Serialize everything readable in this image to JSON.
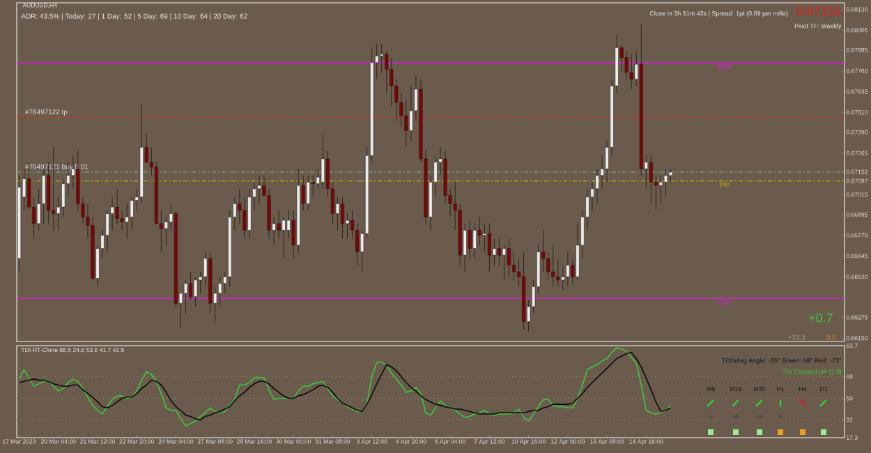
{
  "chart_data": [
    {
      "type": "candlestick",
      "title": "AUDUSD,H4",
      "categories": [
        null,
        null,
        null,
        null,
        null,
        null,
        null,
        null,
        null,
        null,
        null,
        null,
        null,
        null,
        null,
        null,
        null,
        null,
        null,
        null,
        null,
        null,
        null,
        null,
        null,
        null,
        null,
        null,
        null,
        null,
        null,
        null,
        null,
        null,
        null,
        null,
        null,
        null,
        null,
        null,
        null,
        null,
        null,
        null,
        null,
        null,
        null,
        null,
        null,
        null,
        null,
        null,
        null,
        null,
        null,
        null,
        null,
        null,
        null,
        null,
        null,
        null,
        null,
        null,
        null,
        null,
        null,
        null,
        null,
        null,
        null,
        null,
        null,
        null,
        null,
        null,
        null,
        null,
        null,
        null,
        null,
        null,
        null,
        null,
        null,
        null,
        null,
        null,
        null,
        null,
        null,
        null,
        null,
        null,
        null,
        null,
        null,
        null,
        null,
        null,
        null,
        null,
        null,
        null,
        null,
        null,
        null,
        null,
        null,
        null,
        null,
        null,
        null,
        null,
        null,
        null,
        null,
        null,
        null,
        null,
        null,
        null,
        null,
        null,
        null,
        null,
        null,
        null,
        null,
        null,
        null,
        null,
        null,
        null,
        null,
        null,
        null,
        null,
        null,
        null,
        null,
        null,
        null,
        null,
        null,
        null,
        null,
        null,
        null,
        null,
        null,
        null,
        null,
        null,
        null,
        null,
        null,
        null,
        null,
        null,
        null,
        null,
        null,
        null,
        null,
        null,
        null,
        null,
        null
      ],
      "ohlc": [
        [
          0.6663,
          0.6713,
          0.6655,
          0.6706
        ],
        [
          0.67,
          0.6717,
          0.6692,
          0.6711
        ],
        [
          0.6711,
          0.6721,
          0.6692,
          0.6694
        ],
        [
          0.6694,
          0.67,
          0.6675,
          0.6684
        ],
        [
          0.6684,
          0.6705,
          0.668,
          0.6696
        ],
        [
          0.6696,
          0.6717,
          0.6684,
          0.6713
        ],
        [
          0.6713,
          0.6721,
          0.6684,
          0.6692
        ],
        [
          0.6692,
          0.673,
          0.668,
          0.669
        ],
        [
          0.669,
          0.67,
          0.668,
          0.6694
        ],
        [
          0.6694,
          0.6711,
          0.6688,
          0.6708
        ],
        [
          0.6708,
          0.6721,
          0.67,
          0.6713
        ],
        [
          0.6713,
          0.6725,
          0.6705,
          0.6717
        ],
        [
          0.6717,
          0.6728,
          0.6692,
          0.6696
        ],
        [
          0.6696,
          0.67,
          0.6684,
          0.6688
        ],
        [
          0.6688,
          0.6696,
          0.6675,
          0.6683
        ],
        [
          0.6683,
          0.6688,
          0.665,
          0.6651
        ],
        [
          0.6651,
          0.6671,
          0.6646,
          0.6669
        ],
        [
          0.6669,
          0.668,
          0.6663,
          0.6677
        ],
        [
          0.6677,
          0.6692,
          0.6667,
          0.669
        ],
        [
          0.669,
          0.67,
          0.668,
          0.6694
        ],
        [
          0.6694,
          0.6705,
          0.6684,
          0.6687
        ],
        [
          0.6687,
          0.6692,
          0.668,
          0.6685
        ],
        [
          0.6685,
          0.6696,
          0.6675,
          0.6688
        ],
        [
          0.6688,
          0.67,
          0.668,
          0.6698
        ],
        [
          0.6698,
          0.6705,
          0.6692,
          0.67
        ],
        [
          0.67,
          0.6756,
          0.6696,
          0.673
        ],
        [
          0.673,
          0.6738,
          0.6721,
          0.6721
        ],
        [
          0.6721,
          0.673,
          0.6713,
          0.6718
        ],
        [
          0.6718,
          0.6721,
          0.6684,
          0.6684
        ],
        [
          0.6684,
          0.6692,
          0.6667,
          0.6681
        ],
        [
          0.6681,
          0.6688,
          0.6671,
          0.6685
        ],
        [
          0.6685,
          0.6696,
          0.668,
          0.669
        ],
        [
          0.669,
          0.6692,
          0.6634,
          0.6636
        ],
        [
          0.6636,
          0.6642,
          0.6621,
          0.6642
        ],
        [
          0.6642,
          0.665,
          0.663,
          0.6648
        ],
        [
          0.6648,
          0.6655,
          0.6638,
          0.664
        ],
        [
          0.664,
          0.6652,
          0.6634,
          0.665
        ],
        [
          0.665,
          0.6655,
          0.6642,
          0.6652
        ],
        [
          0.6652,
          0.6667,
          0.6646,
          0.6663
        ],
        [
          0.6663,
          0.6667,
          0.663,
          0.6636
        ],
        [
          0.6636,
          0.6646,
          0.6625,
          0.6642
        ],
        [
          0.6642,
          0.6652,
          0.6634,
          0.6648
        ],
        [
          0.6648,
          0.6655,
          0.6642,
          0.6652
        ],
        [
          0.6652,
          0.6692,
          0.6646,
          0.6688
        ],
        [
          0.6688,
          0.67,
          0.668,
          0.6696
        ],
        [
          0.6696,
          0.6705,
          0.6684,
          0.6692
        ],
        [
          0.6692,
          0.67,
          0.6675,
          0.668
        ],
        [
          0.668,
          0.6705,
          0.6675,
          0.67
        ],
        [
          0.67,
          0.6709,
          0.6692,
          0.6705
        ],
        [
          0.6705,
          0.6713,
          0.6696,
          0.6707
        ],
        [
          0.6707,
          0.6713,
          0.67,
          0.6701
        ],
        [
          0.6701,
          0.6705,
          0.6675,
          0.668
        ],
        [
          0.668,
          0.6688,
          0.6671,
          0.6684
        ],
        [
          0.6684,
          0.6692,
          0.6675,
          0.668
        ],
        [
          0.668,
          0.6688,
          0.6663,
          0.6686
        ],
        [
          0.668,
          0.6692,
          0.6675,
          0.6686
        ],
        [
          0.6686,
          0.6692,
          0.6663,
          0.6671
        ],
        [
          0.6671,
          0.6717,
          0.6667,
          0.6707
        ],
        [
          0.6707,
          0.6713,
          0.6692,
          0.6696
        ],
        [
          0.6696,
          0.6713,
          0.6692,
          0.6709
        ],
        [
          0.6709,
          0.6713,
          0.67,
          0.6708
        ],
        [
          0.6708,
          0.6717,
          0.6705,
          0.6712
        ],
        [
          0.6709,
          0.6738,
          0.6705,
          0.6723
        ],
        [
          0.6723,
          0.6728,
          0.67,
          0.6705
        ],
        [
          0.6705,
          0.6709,
          0.6684,
          0.669
        ],
        [
          0.669,
          0.67,
          0.668,
          0.6696
        ],
        [
          0.6696,
          0.67,
          0.6675,
          0.6684
        ],
        [
          0.6684,
          0.669,
          0.6675,
          0.6686
        ],
        [
          0.6686,
          0.6692,
          0.6675,
          0.668
        ],
        [
          0.668,
          0.6684,
          0.6659,
          0.6667
        ],
        [
          0.6667,
          0.668,
          0.6655,
          0.6678
        ],
        [
          0.6678,
          0.673,
          0.6675,
          0.6725
        ],
        [
          0.6725,
          0.679,
          0.6721,
          0.6781
        ],
        [
          0.6781,
          0.6792,
          0.6771,
          0.6785
        ],
        [
          0.6785,
          0.6792,
          0.6775,
          0.6786
        ],
        [
          0.6786,
          0.6788,
          0.6763,
          0.6777
        ],
        [
          0.6777,
          0.6784,
          0.6755,
          0.6767
        ],
        [
          0.6767,
          0.6771,
          0.6746,
          0.6757
        ],
        [
          0.6757,
          0.6763,
          0.6742,
          0.6749
        ],
        [
          0.6749,
          0.6759,
          0.673,
          0.674
        ],
        [
          0.674,
          0.6767,
          0.6734,
          0.6752
        ],
        [
          0.6752,
          0.6773,
          0.6746,
          0.6765
        ],
        [
          0.6765,
          0.6771,
          0.6721,
          0.6723
        ],
        [
          0.6723,
          0.6728,
          0.6684,
          0.6688
        ],
        [
          0.6688,
          0.6713,
          0.668,
          0.6709
        ],
        [
          0.6709,
          0.6725,
          0.67,
          0.6721
        ],
        [
          0.6721,
          0.673,
          0.6713,
          0.6723
        ],
        [
          0.6723,
          0.6728,
          0.6696,
          0.6701
        ],
        [
          0.6701,
          0.6705,
          0.6688,
          0.6696
        ],
        [
          0.6696,
          0.6709,
          0.668,
          0.6692
        ],
        [
          0.6692,
          0.6696,
          0.6659,
          0.6665
        ],
        [
          0.6665,
          0.6684,
          0.6655,
          0.668
        ],
        [
          0.668,
          0.6686,
          0.6663,
          0.6669
        ],
        [
          0.6669,
          0.6684,
          0.6663,
          0.668
        ],
        [
          0.668,
          0.6688,
          0.6671,
          0.6677
        ],
        [
          0.6677,
          0.6684,
          0.6667,
          0.6678
        ],
        [
          0.6678,
          0.6684,
          0.6655,
          0.6665
        ],
        [
          0.6665,
          0.6675,
          0.6659,
          0.6669
        ],
        [
          0.6669,
          0.6675,
          0.6659,
          0.6665
        ],
        [
          0.6665,
          0.6671,
          0.665,
          0.6669
        ],
        [
          0.6669,
          0.6675,
          0.6652,
          0.6659
        ],
        [
          0.6659,
          0.6667,
          0.665,
          0.6655
        ],
        [
          0.6655,
          0.6663,
          0.6646,
          0.6652
        ],
        [
          0.6652,
          0.6667,
          0.662,
          0.6625
        ],
        [
          0.6625,
          0.6638,
          0.6619,
          0.6634
        ],
        [
          0.6634,
          0.665,
          0.663,
          0.6646
        ],
        [
          0.6646,
          0.6671,
          0.6642,
          0.6667
        ],
        [
          0.6667,
          0.668,
          0.6655,
          0.6663
        ],
        [
          0.6663,
          0.6667,
          0.665,
          0.6655
        ],
        [
          0.6655,
          0.6671,
          0.6646,
          0.6652
        ],
        [
          0.6652,
          0.6663,
          0.6646,
          0.665
        ],
        [
          0.665,
          0.6659,
          0.6644,
          0.6652
        ],
        [
          0.6652,
          0.6667,
          0.6646,
          0.6659
        ],
        [
          0.6659,
          0.6663,
          0.6648,
          0.6652
        ],
        [
          0.6652,
          0.6684,
          0.665,
          0.6671
        ],
        [
          0.6671,
          0.6692,
          0.6663,
          0.6688
        ],
        [
          0.6688,
          0.6705,
          0.668,
          0.67
        ],
        [
          0.67,
          0.6709,
          0.6692,
          0.6705
        ],
        [
          0.6705,
          0.6717,
          0.6696,
          0.6713
        ],
        [
          0.6713,
          0.6725,
          0.6705,
          0.6717
        ],
        [
          0.6717,
          0.6734,
          0.6709,
          0.673
        ],
        [
          0.673,
          0.6771,
          0.6725,
          0.6767
        ],
        [
          0.6767,
          0.6798,
          0.6763,
          0.679
        ],
        [
          0.679,
          0.6792,
          0.6775,
          0.6784
        ],
        [
          0.6784,
          0.6788,
          0.6771,
          0.6775
        ],
        [
          0.6775,
          0.6786,
          0.6765,
          0.6771
        ],
        [
          0.6771,
          0.6788,
          0.6767,
          0.678
        ],
        [
          0.678,
          0.6804,
          0.6713,
          0.6717
        ],
        [
          0.6717,
          0.6725,
          0.6705,
          0.6721
        ],
        [
          0.6721,
          0.6725,
          0.6696,
          0.6709
        ],
        [
          0.6709,
          0.6713,
          0.6692,
          0.6707
        ],
        [
          0.6707,
          0.6713,
          0.6696,
          0.6709
        ],
        [
          0.6709,
          0.6717,
          0.67,
          0.6713
        ],
        [
          0.6713,
          0.6717,
          0.6709,
          0.6715
        ],
        null,
        null,
        null,
        null,
        null,
        null,
        null,
        null,
        null,
        null,
        null,
        null,
        null,
        null,
        null,
        null,
        null,
        null,
        null,
        null,
        null,
        null,
        null,
        null,
        null,
        null,
        null,
        null,
        null,
        null,
        null,
        null,
        null,
        null,
        null
      ],
      "ylim": [
        0.6613,
        0.6817
      ],
      "yticks": [
        {
          "value": 0.6813,
          "label": "0.68130"
        },
        {
          "value": 0.68005,
          "label": "0.68005"
        },
        {
          "value": 0.67885,
          "label": "0.67885"
        },
        {
          "value": 0.6776,
          "label": "0.67760"
        },
        {
          "value": 0.67635,
          "label": "0.67635"
        },
        {
          "value": 0.6751,
          "label": "0.67510"
        },
        {
          "value": 0.6739,
          "label": "0.67390"
        },
        {
          "value": 0.67265,
          "label": "0.67265"
        },
        0.67152,
        0.67097,
        {
          "value": 0.67015,
          "label": "0.67015"
        },
        {
          "value": 0.66895,
          "label": "0.66895"
        },
        {
          "value": 0.6677,
          "label": "0.66770"
        },
        {
          "value": 0.66645,
          "label": "0.66645"
        },
        {
          "value": 0.6652,
          "label": "0.66520"
        },
        {
          "value": 0.66275,
          "label": "0.66275"
        },
        {
          "value": 0.6615,
          "label": "0.66150"
        }
      ],
      "tick_labels": "y",
      "ref_lines": [
        {
          "axis": "y",
          "value": 0.6781,
          "label": "R38",
          "color": "#d81ed8",
          "line_style": "solid"
        },
        {
          "axis": "y",
          "value": 0.6639,
          "label": "S38",
          "color": "#d81ed8",
          "line_style": "solid"
        },
        {
          "axis": "y",
          "value": 0.67097,
          "label": "PP",
          "color": "#c8b400",
          "line_style": "dashed"
        },
        {
          "axis": "y",
          "value": 0.6748,
          "label": "#76497122 tp",
          "color": "#c03a2a",
          "line_style": "dashed"
        },
        {
          "axis": "y",
          "value": 0.6715,
          "label": "#76497121 buy 0.01",
          "color": "#6f9a7c",
          "line_style": "dashed"
        }
      ],
      "annotations": [
        "ADR: 43.5% | Today: 27 | 1 Day: 52 | 5 Day: 69 | 10 Day: 64 | 20 Day: 62",
        "Close in 3h 51m 43s | Spread: 1pt (0.09 per mille)",
        "0.67152",
        "Pivot TF: Weekly",
        "+0.7",
        "+33.3",
        "0.0"
      ]
    },
    {
      "type": "line",
      "title": "TDI-RT-Clone 86.5 24.6 53.6 41.7 41.5",
      "categories": [
        "17 Mar 2023",
        null,
        null,
        null,
        null,
        null,
        null,
        null,
        "20 Mar 04:00",
        null,
        null,
        null,
        null,
        null,
        null,
        null,
        "21 Mar 12:00",
        null,
        null,
        null,
        null,
        null,
        null,
        null,
        "22 Mar 20:00",
        null,
        null,
        null,
        null,
        null,
        null,
        null,
        "24 Mar 04:00",
        null,
        null,
        null,
        null,
        null,
        null,
        null,
        "27 Mar 08:00",
        null,
        null,
        null,
        null,
        null,
        null,
        null,
        "28 Mar 16:00",
        null,
        null,
        null,
        null,
        null,
        null,
        null,
        "30 Mar 00:00",
        null,
        null,
        null,
        null,
        null,
        null,
        null,
        "31 Mar 08:00",
        null,
        null,
        null,
        null,
        null,
        null,
        null,
        "3 Apr 12:00",
        null,
        null,
        null,
        null,
        null,
        null,
        null,
        "4 Apr 20:00",
        null,
        null,
        null,
        null,
        null,
        null,
        null,
        "6 Apr 04:00",
        null,
        null,
        null,
        null,
        null,
        null,
        null,
        "7 Apr 12:00",
        null,
        null,
        null,
        null,
        null,
        null,
        null,
        "10 Apr 16:00",
        null,
        null,
        null,
        null,
        null,
        null,
        null,
        "12 Apr 00:00",
        null,
        null,
        null,
        null,
        null,
        null,
        null,
        "13 Apr 08:00",
        null,
        null,
        null,
        null,
        null,
        null,
        null,
        "14 Apr 16:00",
        null,
        null,
        null,
        null,
        null,
        null,
        null,
        null,
        null,
        null,
        null,
        null,
        null,
        null,
        null,
        null,
        null,
        null,
        null,
        null,
        null,
        null,
        null,
        null,
        null,
        null,
        null,
        null,
        null,
        null,
        null,
        null,
        null,
        null,
        null,
        null,
        null,
        null,
        null,
        null
      ],
      "series": [
        {
          "color": "#3cc83c",
          "values": [
            66,
            74,
            67,
            60,
            62,
            64,
            65,
            60,
            56,
            58,
            63,
            66,
            64,
            58,
            51,
            44,
            40,
            37,
            43,
            49,
            52,
            52,
            50,
            51,
            56,
            65,
            72,
            70,
            64,
            54,
            42,
            40,
            40,
            33,
            27,
            29,
            31,
            35,
            38,
            42,
            39,
            38,
            39,
            44,
            49,
            61,
            61,
            63,
            67,
            67,
            67,
            57,
            49,
            50,
            50,
            50,
            50,
            56,
            60,
            60,
            62,
            63,
            64,
            58,
            52,
            49,
            46,
            43,
            41,
            39,
            39,
            45,
            68,
            80,
            80,
            77,
            71,
            66,
            61,
            55,
            56,
            59,
            54,
            38,
            36,
            42,
            48,
            44,
            42,
            40,
            37,
            34,
            35,
            37,
            38,
            40,
            37,
            36,
            37,
            37,
            37,
            38,
            41,
            34,
            31,
            37,
            43,
            49,
            49,
            44,
            43,
            43,
            42,
            42,
            50,
            61,
            74,
            76,
            78,
            81,
            83,
            88,
            92,
            91,
            89,
            84,
            79,
            61,
            40,
            38,
            37,
            38,
            40,
            44,
            null,
            null,
            null,
            null,
            null,
            null,
            null,
            null,
            null,
            null,
            null,
            null,
            null,
            null,
            null,
            null,
            null,
            null,
            null,
            null,
            null,
            null,
            null,
            null,
            null,
            null,
            null,
            null,
            null,
            null,
            null,
            null,
            null,
            null,
            null
          ]
        },
        {
          "color": "#0a0a0a",
          "values": [
            63,
            64,
            65,
            66,
            65,
            65,
            64,
            62,
            61,
            60,
            60,
            61,
            61,
            57,
            54,
            51,
            47,
            43,
            42,
            44,
            47,
            50,
            51,
            51,
            54,
            58,
            61,
            65,
            64,
            61,
            55,
            48,
            43,
            40,
            36,
            35,
            33,
            32,
            35,
            36,
            38,
            39,
            41,
            43,
            48,
            52,
            55,
            59,
            62,
            64,
            64,
            62,
            58,
            55,
            52,
            50,
            50,
            52,
            53,
            55,
            57,
            60,
            61,
            59,
            55,
            50,
            46,
            44,
            42,
            40,
            39,
            45,
            53,
            62,
            70,
            78,
            76,
            73,
            68,
            63,
            59,
            56,
            52,
            49,
            47,
            45,
            44,
            43,
            42,
            41,
            41,
            40,
            39,
            38,
            37,
            37,
            37,
            37,
            38,
            38,
            38,
            38,
            38,
            38,
            39,
            40,
            40,
            42,
            43,
            45,
            45,
            45,
            45,
            46,
            50,
            54,
            59,
            63,
            67,
            71,
            75,
            79,
            83,
            85,
            87,
            88,
            83,
            76,
            67,
            57,
            47,
            39,
            40,
            42,
            null,
            null,
            null,
            null,
            null,
            null,
            null,
            null,
            null,
            null,
            null,
            null,
            null,
            null,
            null,
            null,
            null,
            null,
            null,
            null,
            null,
            null,
            null,
            null,
            null,
            null,
            null,
            null,
            null,
            null,
            null,
            null,
            null,
            null,
            null
          ]
        }
      ],
      "ylim": [
        17.3,
        93.7
      ],
      "yticks": [
        93.7,
        68,
        50,
        32,
        17.3
      ],
      "ref_lines": [
        {
          "axis": "y",
          "value": 68,
          "color": "#8c7c6c",
          "line_style": "dotted"
        },
        {
          "axis": "y",
          "value": 50,
          "color": "#8c7c6c",
          "line_style": "dotted"
        },
        {
          "axis": "y",
          "value": 32,
          "color": "#8c7c6c",
          "line_style": "dotted"
        }
      ],
      "annotations": [
        "TDI'sAvg Angle: -35° Green: 58° Red: -73°",
        "TDI Crossed UP [1.8]",
        "M5",
        "M15",
        "M30",
        "H1",
        "H4",
        "D1"
      ]
    }
  ]
}
